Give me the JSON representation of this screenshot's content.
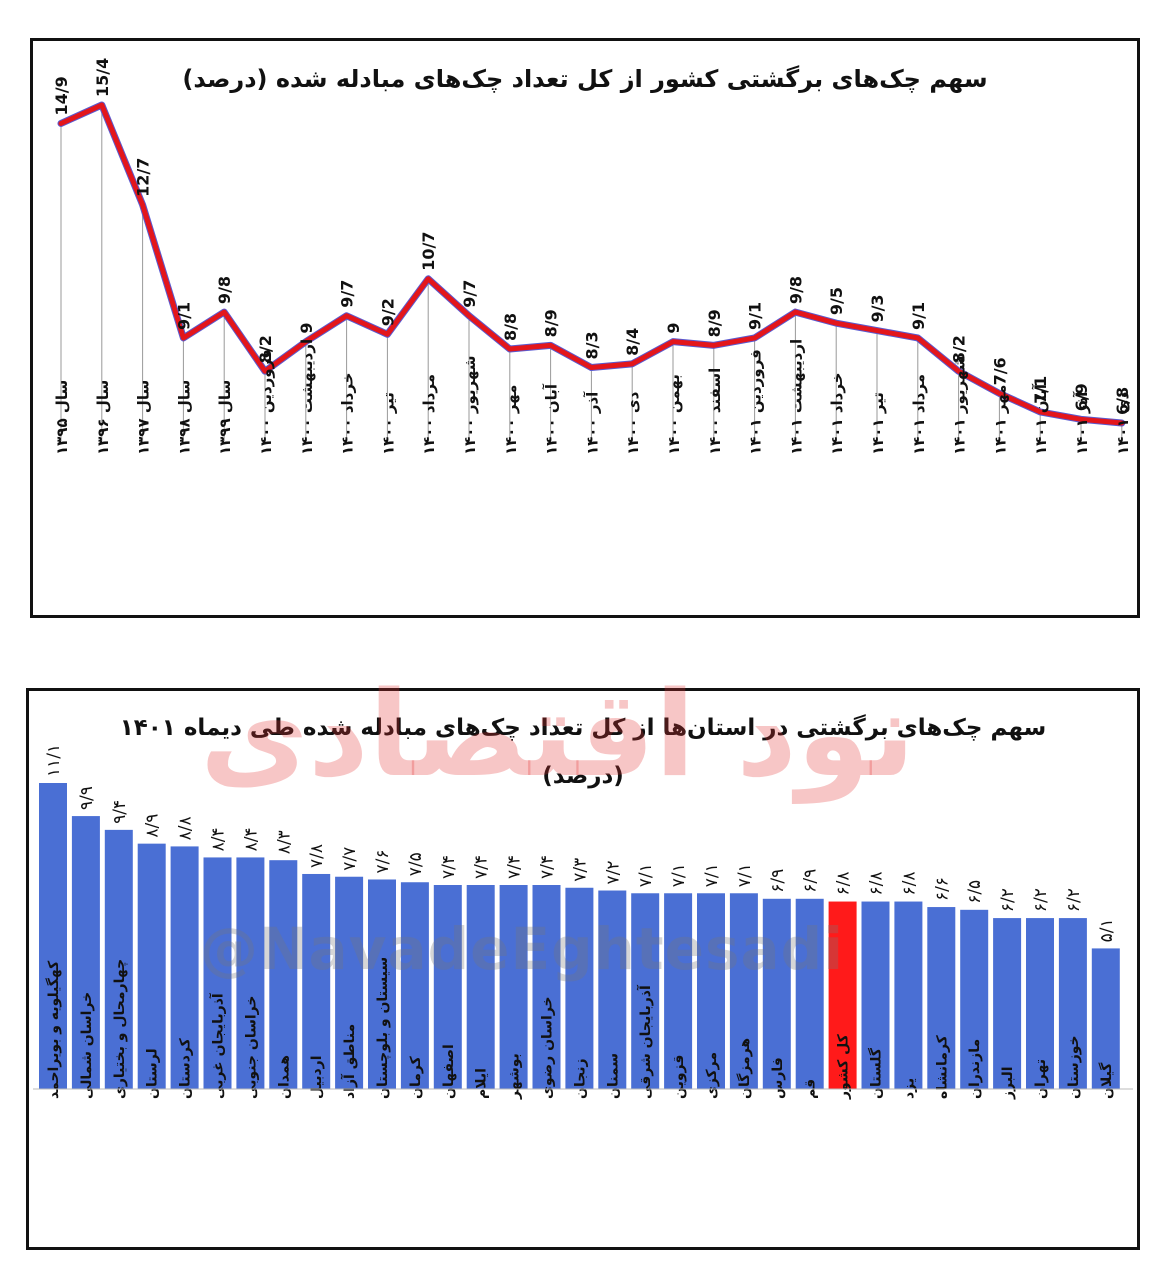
{
  "chart_data": [
    {
      "type": "line",
      "title": "سهم چک‌های برگشتی کشور از کل تعداد چک‌های مبادله شده (درصد)",
      "categories": [
        "سال ۱۳۹۵",
        "سال ۱۳۹۶",
        "سال ۱۳۹۷",
        "سال ۱۳۹۸",
        "سال ۱۳۹۹",
        "فروردین ۱۴۰۰",
        "اردیبهشت ۱۴۰۰",
        "خرداد ۱۴۰۰",
        "تیر ۱۴۰۰",
        "مرداد ۱۴۰۰",
        "شهریور ۱۴۰۰",
        "مهر ۱۴۰۰",
        "آبان ۱۴۰۰",
        "آذر ۱۴۰۰",
        "دی ۱۴۰۰",
        "بهمن ۱۴۰۰",
        "اسفند ۱۴۰۰",
        "فروردین ۱۴۰۱",
        "اردیبهشت ۱۴۰۱",
        "خرداد ۱۴۰۱",
        "تیر ۱۴۰۱",
        "مرداد ۱۴۰۱",
        "شهریور ۱۴۰۱",
        "مهر ۱۴۰۱",
        "آبان ۱۴۰۱",
        "آذر ۱۴۰۱",
        "دی ۱۴۰۱"
      ],
      "values": [
        14.9,
        15.4,
        12.7,
        9.1,
        9.8,
        8.2,
        9.0,
        9.7,
        9.2,
        10.7,
        9.7,
        8.8,
        8.9,
        8.3,
        8.4,
        9.0,
        8.9,
        9.1,
        9.8,
        9.5,
        9.3,
        9.1,
        8.2,
        7.6,
        7.1,
        6.9,
        6.8
      ],
      "labels": [
        "14/9",
        "15/4",
        "12/7",
        "9/1",
        "9/8",
        "8/2",
        "9",
        "9/7",
        "9/2",
        "10/7",
        "9/7",
        "8/8",
        "8/9",
        "8/3",
        "8/4",
        "9",
        "8/9",
        "9/1",
        "9/8",
        "9/5",
        "9/3",
        "9/1",
        "8/2",
        "7/6",
        "7/1",
        "6/9",
        "6/8"
      ],
      "color": "#e3161b"
    },
    {
      "type": "bar",
      "title": "سهم چک‌های برگشتی در استان‌ها از کل تعداد چک‌های مبادله شده طی دیماه ۱۴۰۱",
      "subtitle": "(درصد)",
      "categories": [
        "کهگیلویه و بویراحمد",
        "خراسان شمالی",
        "چهارمحال و بختیاری",
        "لرستان",
        "کردستان",
        "آذربایجان غربی",
        "خراسان جنوبی",
        "همدان",
        "اردبیل",
        "مناطق آزاد",
        "سیستان و بلوچستان",
        "کرمان",
        "اصفهان",
        "ایلام",
        "بوشهر",
        "خراسان رضوی",
        "زنجان",
        "سمنان",
        "آذربایجان شرقی",
        "قزوین",
        "مرکزی",
        "هرمزگان",
        "فارس",
        "قم",
        "کل کشور",
        "گلستان",
        "یزد",
        "کرمانشاه",
        "مازندران",
        "البرز",
        "تهران",
        "خوزستان",
        "گیلان"
      ],
      "values": [
        11.1,
        9.9,
        9.4,
        8.9,
        8.8,
        8.4,
        8.4,
        8.3,
        7.8,
        7.7,
        7.6,
        7.5,
        7.4,
        7.4,
        7.4,
        7.4,
        7.3,
        7.2,
        7.1,
        7.1,
        7.1,
        7.1,
        6.9,
        6.9,
        6.8,
        6.8,
        6.8,
        6.6,
        6.5,
        6.2,
        6.2,
        6.2,
        5.1
      ],
      "labels": [
        "۱۱/۱",
        "۹/۹",
        "۹/۴",
        "۸/۹",
        "۸/۸",
        "۸/۴",
        "۸/۴",
        "۸/۳",
        "۷/۸",
        "۷/۷",
        "۷/۶",
        "۷/۵",
        "۷/۴",
        "۷/۴",
        "۷/۴",
        "۷/۴",
        "۷/۳",
        "۷/۲",
        "۷/۱",
        "۷/۱",
        "۷/۱",
        "۷/۱",
        "۶/۹",
        "۶/۹",
        "۶/۸",
        "۶/۸",
        "۶/۸",
        "۶/۶",
        "۶/۵",
        "۶/۲",
        "۶/۲",
        "۶/۲",
        "۵/۱"
      ],
      "highlight_category": "کل کشور",
      "bar_color": "#4a6fd4",
      "highlight_color": "#ff1a1a"
    }
  ],
  "watermark": {
    "brand": "نود اقتصادی",
    "handle": "@NavadeEghtesadi",
    "color": "#e03030"
  }
}
